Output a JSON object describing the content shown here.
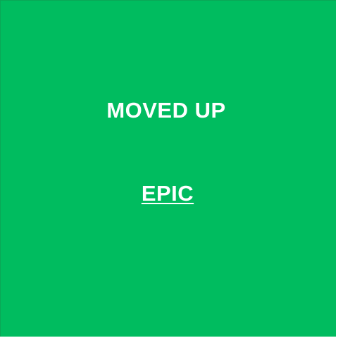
{
  "panel": {
    "background_color": "#00bc5f",
    "text_color": "#ffffff",
    "message": "MOVED UP",
    "link_label": "EPIC"
  }
}
